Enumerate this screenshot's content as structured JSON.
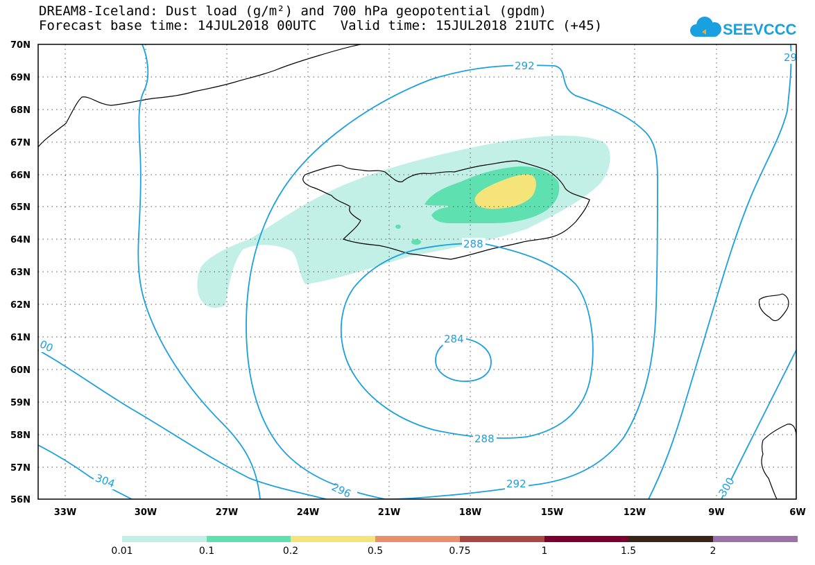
{
  "header": {
    "title_line": "DREAM8-Iceland: Dust load (g/m²) and 700 hPa geopotential (gpdm)",
    "base_time_label": "Forecast base time: 14JUL2018 00UTC",
    "valid_time_label": "Valid time: 15JUL2018 21UTC (+45)"
  },
  "logo": {
    "text": "SEEVCCC",
    "icon": "cloud-icon",
    "color": "#1a9fe0"
  },
  "map": {
    "lat_labels": [
      "70N",
      "69N",
      "68N",
      "67N",
      "66N",
      "65N",
      "64N",
      "63N",
      "62N",
      "61N",
      "60N",
      "59N",
      "58N",
      "57N",
      "56N"
    ],
    "lon_labels": [
      "33W",
      "30W",
      "27W",
      "24W",
      "21W",
      "18W",
      "15W",
      "12W",
      "9W",
      "6W"
    ],
    "contour_labels": [
      "292",
      "29",
      "288",
      "284",
      "288",
      "292",
      "296",
      "304",
      "300",
      "00"
    ],
    "contour_color": "#1a9fe0"
  },
  "colorbar": {
    "labels": [
      "0.01",
      "0.1",
      "0.2",
      "0.5",
      "0.75",
      "1",
      "1.5",
      "2"
    ],
    "colors": [
      "#c2f0e6",
      "#5ee0b0",
      "#f5e47a",
      "#e8906a",
      "#a84a44",
      "#7a0030",
      "#3a2418",
      "#9a72a8"
    ]
  }
}
